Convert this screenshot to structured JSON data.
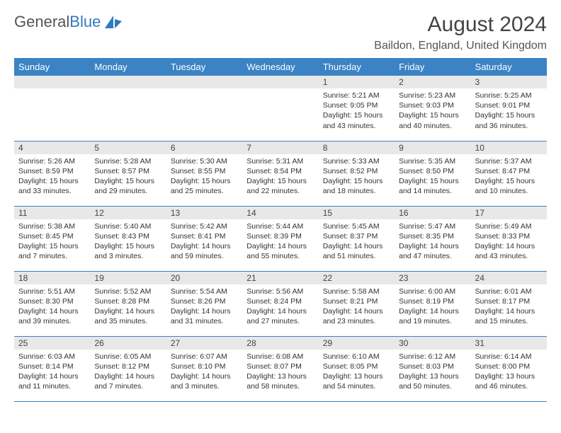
{
  "logo": {
    "text1": "General",
    "text2": "Blue"
  },
  "title": "August 2024",
  "location": "Baildon, England, United Kingdom",
  "colors": {
    "header_bg": "#3a83c5",
    "header_text": "#ffffff",
    "daynum_bg": "#e8e8e8",
    "border": "#3a83c5",
    "logo_blue": "#2f7ac0",
    "title_color": "#444444",
    "body_text": "#333333"
  },
  "day_headers": [
    "Sunday",
    "Monday",
    "Tuesday",
    "Wednesday",
    "Thursday",
    "Friday",
    "Saturday"
  ],
  "weeks": [
    [
      null,
      null,
      null,
      null,
      {
        "d": "1",
        "rise": "5:21 AM",
        "set": "9:05 PM",
        "dl": "15 hours and 43 minutes."
      },
      {
        "d": "2",
        "rise": "5:23 AM",
        "set": "9:03 PM",
        "dl": "15 hours and 40 minutes."
      },
      {
        "d": "3",
        "rise": "5:25 AM",
        "set": "9:01 PM",
        "dl": "15 hours and 36 minutes."
      }
    ],
    [
      {
        "d": "4",
        "rise": "5:26 AM",
        "set": "8:59 PM",
        "dl": "15 hours and 33 minutes."
      },
      {
        "d": "5",
        "rise": "5:28 AM",
        "set": "8:57 PM",
        "dl": "15 hours and 29 minutes."
      },
      {
        "d": "6",
        "rise": "5:30 AM",
        "set": "8:55 PM",
        "dl": "15 hours and 25 minutes."
      },
      {
        "d": "7",
        "rise": "5:31 AM",
        "set": "8:54 PM",
        "dl": "15 hours and 22 minutes."
      },
      {
        "d": "8",
        "rise": "5:33 AM",
        "set": "8:52 PM",
        "dl": "15 hours and 18 minutes."
      },
      {
        "d": "9",
        "rise": "5:35 AM",
        "set": "8:50 PM",
        "dl": "15 hours and 14 minutes."
      },
      {
        "d": "10",
        "rise": "5:37 AM",
        "set": "8:47 PM",
        "dl": "15 hours and 10 minutes."
      }
    ],
    [
      {
        "d": "11",
        "rise": "5:38 AM",
        "set": "8:45 PM",
        "dl": "15 hours and 7 minutes."
      },
      {
        "d": "12",
        "rise": "5:40 AM",
        "set": "8:43 PM",
        "dl": "15 hours and 3 minutes."
      },
      {
        "d": "13",
        "rise": "5:42 AM",
        "set": "8:41 PM",
        "dl": "14 hours and 59 minutes."
      },
      {
        "d": "14",
        "rise": "5:44 AM",
        "set": "8:39 PM",
        "dl": "14 hours and 55 minutes."
      },
      {
        "d": "15",
        "rise": "5:45 AM",
        "set": "8:37 PM",
        "dl": "14 hours and 51 minutes."
      },
      {
        "d": "16",
        "rise": "5:47 AM",
        "set": "8:35 PM",
        "dl": "14 hours and 47 minutes."
      },
      {
        "d": "17",
        "rise": "5:49 AM",
        "set": "8:33 PM",
        "dl": "14 hours and 43 minutes."
      }
    ],
    [
      {
        "d": "18",
        "rise": "5:51 AM",
        "set": "8:30 PM",
        "dl": "14 hours and 39 minutes."
      },
      {
        "d": "19",
        "rise": "5:52 AM",
        "set": "8:28 PM",
        "dl": "14 hours and 35 minutes."
      },
      {
        "d": "20",
        "rise": "5:54 AM",
        "set": "8:26 PM",
        "dl": "14 hours and 31 minutes."
      },
      {
        "d": "21",
        "rise": "5:56 AM",
        "set": "8:24 PM",
        "dl": "14 hours and 27 minutes."
      },
      {
        "d": "22",
        "rise": "5:58 AM",
        "set": "8:21 PM",
        "dl": "14 hours and 23 minutes."
      },
      {
        "d": "23",
        "rise": "6:00 AM",
        "set": "8:19 PM",
        "dl": "14 hours and 19 minutes."
      },
      {
        "d": "24",
        "rise": "6:01 AM",
        "set": "8:17 PM",
        "dl": "14 hours and 15 minutes."
      }
    ],
    [
      {
        "d": "25",
        "rise": "6:03 AM",
        "set": "8:14 PM",
        "dl": "14 hours and 11 minutes."
      },
      {
        "d": "26",
        "rise": "6:05 AM",
        "set": "8:12 PM",
        "dl": "14 hours and 7 minutes."
      },
      {
        "d": "27",
        "rise": "6:07 AM",
        "set": "8:10 PM",
        "dl": "14 hours and 3 minutes."
      },
      {
        "d": "28",
        "rise": "6:08 AM",
        "set": "8:07 PM",
        "dl": "13 hours and 58 minutes."
      },
      {
        "d": "29",
        "rise": "6:10 AM",
        "set": "8:05 PM",
        "dl": "13 hours and 54 minutes."
      },
      {
        "d": "30",
        "rise": "6:12 AM",
        "set": "8:03 PM",
        "dl": "13 hours and 50 minutes."
      },
      {
        "d": "31",
        "rise": "6:14 AM",
        "set": "8:00 PM",
        "dl": "13 hours and 46 minutes."
      }
    ]
  ],
  "labels": {
    "sunrise": "Sunrise: ",
    "sunset": "Sunset: ",
    "daylight": "Daylight: "
  }
}
